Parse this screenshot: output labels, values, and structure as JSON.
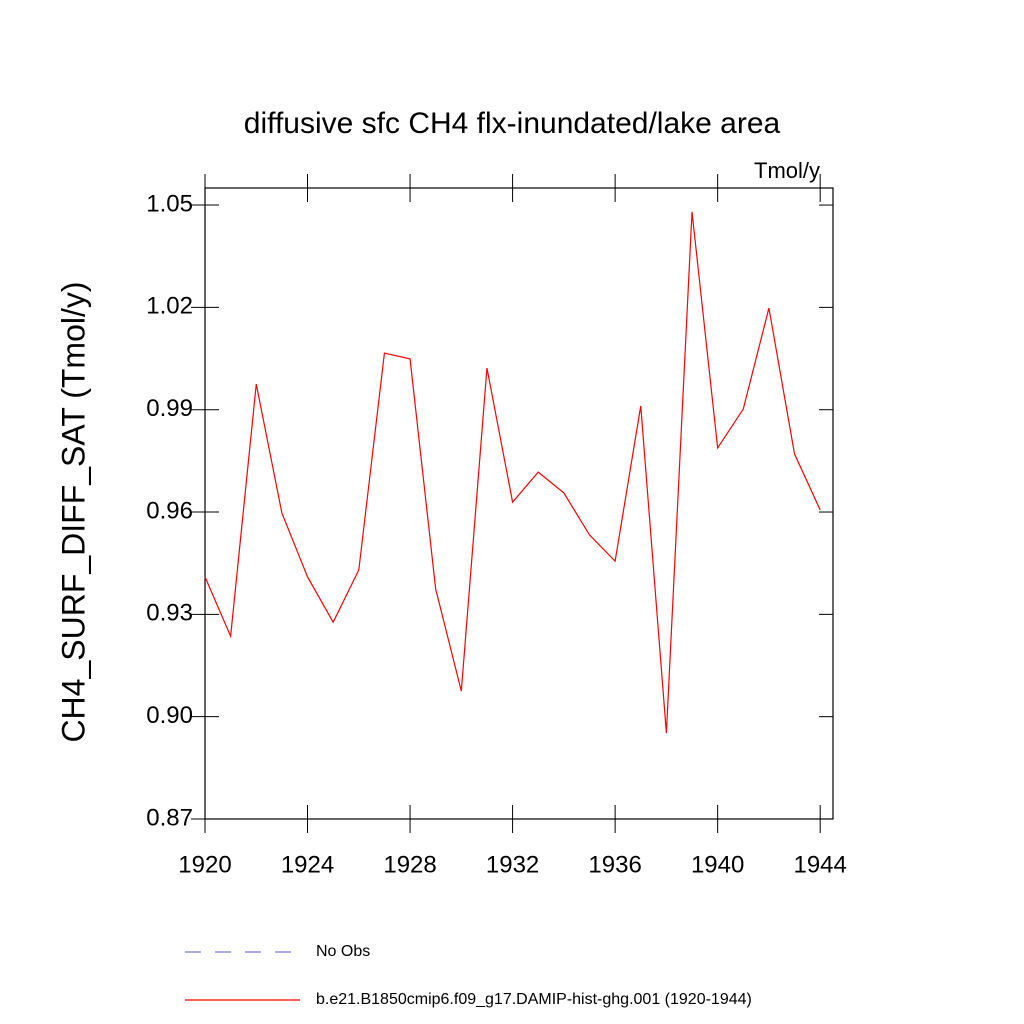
{
  "chart_data": {
    "type": "line",
    "title": "diffusive sfc CH4 flx-inundated/lake area",
    "subtitle": "Tmol/y",
    "y_label": "CH4_SURF_DIFF_SAT  (Tmol/y)",
    "x": [
      1920,
      1921,
      1922,
      1923,
      1924,
      1925,
      1926,
      1927,
      1928,
      1929,
      1930,
      1931,
      1932,
      1933,
      1934,
      1935,
      1936,
      1937,
      1938,
      1939,
      1940,
      1941,
      1942,
      1943,
      1944
    ],
    "series": [
      {
        "name": "No Obs",
        "color": "#7b7bd6",
        "dashed": true,
        "values": [
          null,
          null,
          null,
          null,
          null,
          null,
          null,
          null,
          null,
          null,
          null,
          null,
          null,
          null,
          null,
          null,
          null,
          null,
          null,
          null,
          null,
          null,
          null,
          null,
          null
        ]
      },
      {
        "name": "b.e21.B1850cmip6.f09_g17.DAMIP-hist-ghg.001 (1920-1944)",
        "color": "#ff0000",
        "dashed": false,
        "values": [
          0.941,
          0.9236,
          0.9975,
          0.9597,
          0.941,
          0.9277,
          0.943,
          1.0066,
          1.0049,
          0.9374,
          0.9075,
          1.0022,
          0.9629,
          0.9717,
          0.9656,
          0.9533,
          0.9456,
          0.9911,
          0.8952,
          1.048,
          0.9788,
          0.9902,
          1.0198,
          0.977,
          0.9606
        ]
      }
    ],
    "xlim": [
      1920,
      1944.5
    ],
    "ylim": [
      0.87,
      1.055
    ],
    "xticks": [
      1920,
      1924,
      1928,
      1932,
      1936,
      1940,
      1944
    ],
    "yticks": [
      0.87,
      {
        "value": 0.9,
        "label": "0.90"
      },
      0.93,
      0.96,
      0.99,
      1.02,
      1.05
    ]
  }
}
